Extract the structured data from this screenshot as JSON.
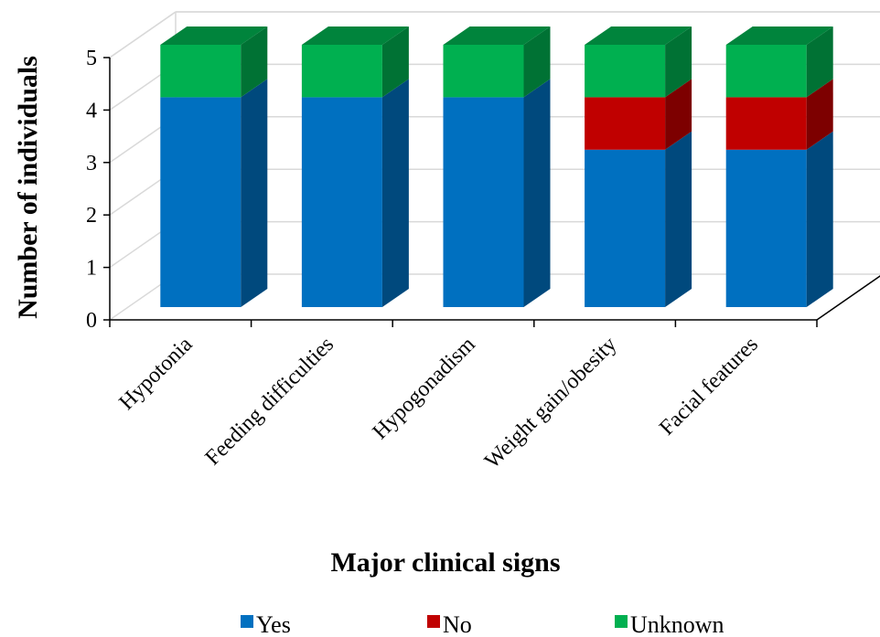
{
  "chart_data": {
    "type": "bar",
    "stacked": true,
    "three_d": true,
    "categories": [
      "Hypotonia",
      "Feeding difficulties",
      "Hypogonadism",
      "Weight gain/obesity",
      "Facial features"
    ],
    "series": [
      {
        "name": "Yes",
        "values": [
          4,
          4,
          4,
          3,
          3
        ],
        "color": "#0070C0"
      },
      {
        "name": "No",
        "values": [
          0,
          0,
          0,
          1,
          1
        ],
        "color": "#C00000"
      },
      {
        "name": "Unknown",
        "values": [
          1,
          1,
          1,
          1,
          1
        ],
        "color": "#00B050"
      }
    ],
    "xlabel": "Major clinical signs",
    "ylabel": "Number of individuals",
    "ylim": [
      0,
      5
    ],
    "yticks": [
      "0",
      "1",
      "2",
      "3",
      "4",
      "5"
    ],
    "grid": true,
    "legend_position": "bottom"
  }
}
